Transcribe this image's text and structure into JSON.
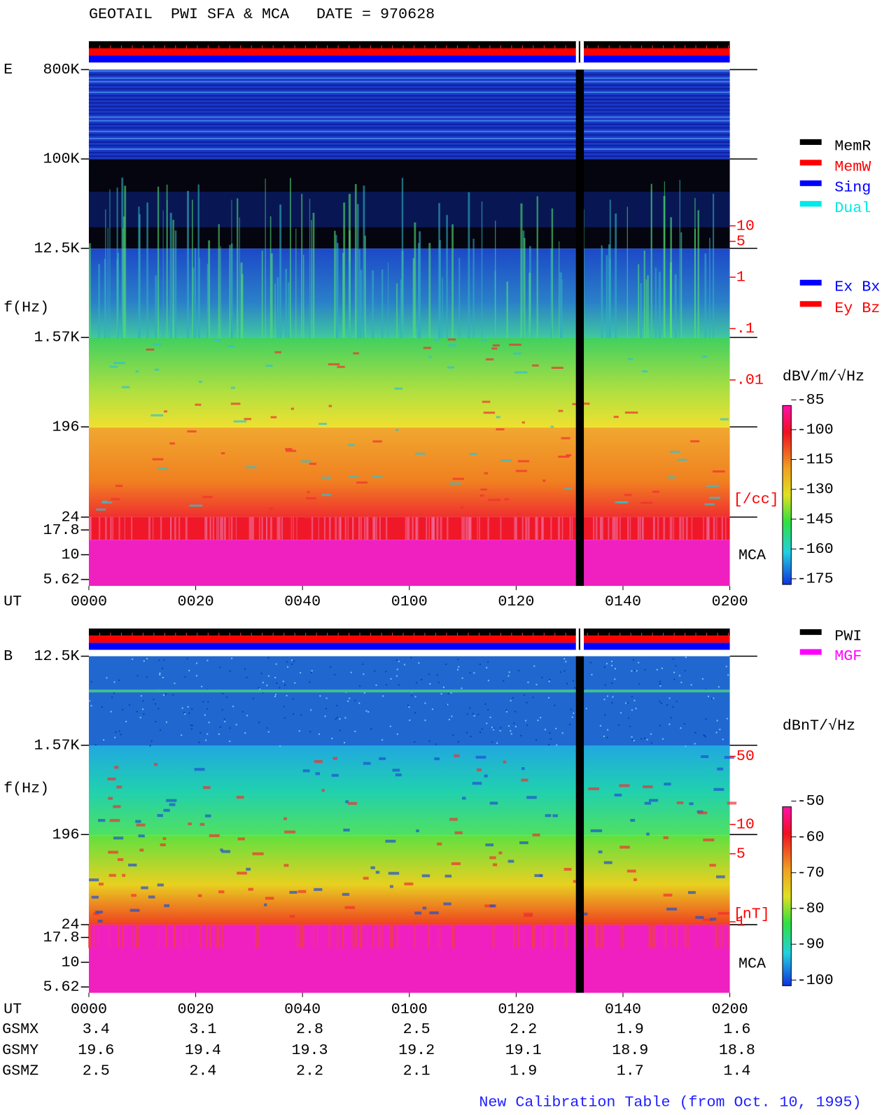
{
  "title": "GEOTAIL  PWI SFA & MCA   DATE = 970628",
  "chart_data": [
    {
      "type": "spectrogram",
      "label": "E",
      "ylabel": "f(Hz)",
      "xlabel": "UT",
      "yscale": "log",
      "xlim": [
        0,
        120
      ],
      "xticks": [
        {
          "value": 0,
          "label": "0000"
        },
        {
          "value": 20,
          "label": "0020"
        },
        {
          "value": 40,
          "label": "0040"
        },
        {
          "value": 60,
          "label": "0100"
        },
        {
          "value": 80,
          "label": "0120"
        },
        {
          "value": 100,
          "label": "0140"
        },
        {
          "value": 120,
          "label": "0200"
        }
      ],
      "ylim": [
        4.84,
        800000
      ],
      "yticks": [
        {
          "value": 800000,
          "label": "800K"
        },
        {
          "value": 100000,
          "label": "100K"
        },
        {
          "value": 12500,
          "label": "12.5K"
        },
        {
          "value": 1570,
          "label": "1.57K"
        },
        196,
        24,
        17.8,
        10,
        5.62
      ],
      "mca_label": "MCA",
      "density_lim": [
        0.01,
        10
      ],
      "density_ticks": [
        10,
        5,
        1,
        {
          "value": 0.1,
          "label": ".1"
        },
        {
          "value": 0.01,
          "label": ".01"
        }
      ],
      "density_unit": "[/cc]",
      "colorbar": {
        "label": "dBV/m/√Hz",
        "clim": [
          -175,
          -85
        ],
        "ticks": [
          -85,
          -100,
          -115,
          -130,
          -145,
          -160,
          -175
        ]
      },
      "legend": [
        {
          "name": "MemR",
          "color": "#000000"
        },
        {
          "name": "MemW",
          "color": "#ff0000"
        },
        {
          "name": "Sing",
          "color": "#0000ff"
        },
        {
          "name": "Dual",
          "color": "#00e8e8"
        }
      ],
      "legend2": [
        {
          "name": "Ex Bx",
          "color": "#0000ff"
        },
        {
          "name": "Ey Bz",
          "color": "#ff0000"
        }
      ]
    },
    {
      "type": "spectrogram",
      "label": "B",
      "ylabel": "f(Hz)",
      "xlabel": "UT",
      "yscale": "log",
      "xlim": [
        0,
        120
      ],
      "xticks": [
        {
          "value": 0,
          "label": "0000"
        },
        {
          "value": 20,
          "label": "0020"
        },
        {
          "value": 40,
          "label": "0040"
        },
        {
          "value": 60,
          "label": "0100"
        },
        {
          "value": 80,
          "label": "0120"
        },
        {
          "value": 100,
          "label": "0140"
        },
        {
          "value": 120,
          "label": "0200"
        }
      ],
      "ylim": [
        4.9,
        12500
      ],
      "yticks": [
        {
          "value": 12500,
          "label": "12.5K"
        },
        {
          "value": 1570,
          "label": "1.57K"
        },
        196,
        24,
        17.8,
        10,
        5.62
      ],
      "mca_label": "MCA",
      "density_lim": [
        1,
        50
      ],
      "density_ticks": [
        50,
        10,
        5,
        1
      ],
      "density_unit": "[nT]",
      "colorbar": {
        "label": "dBnT/√Hz",
        "clim": [
          -100,
          -50
        ],
        "ticks": [
          -50,
          -60,
          -70,
          -80,
          -90,
          -100
        ]
      },
      "legend": [
        {
          "name": "PWI",
          "color": "#000000"
        },
        {
          "name": "MGF",
          "color": "#ff00ff"
        }
      ]
    }
  ],
  "orbit": {
    "rows": [
      {
        "name": "GSMX",
        "values": [
          3.4,
          3.1,
          2.8,
          2.5,
          2.2,
          1.9,
          1.6
        ]
      },
      {
        "name": "GSMY",
        "values": [
          19.6,
          19.4,
          19.3,
          19.2,
          19.1,
          18.9,
          18.8
        ]
      },
      {
        "name": "GSMZ",
        "values": [
          2.5,
          2.4,
          2.2,
          2.1,
          1.9,
          1.7,
          1.4
        ]
      }
    ]
  },
  "footer": "New Calibration Table (from Oct. 10, 1995)"
}
